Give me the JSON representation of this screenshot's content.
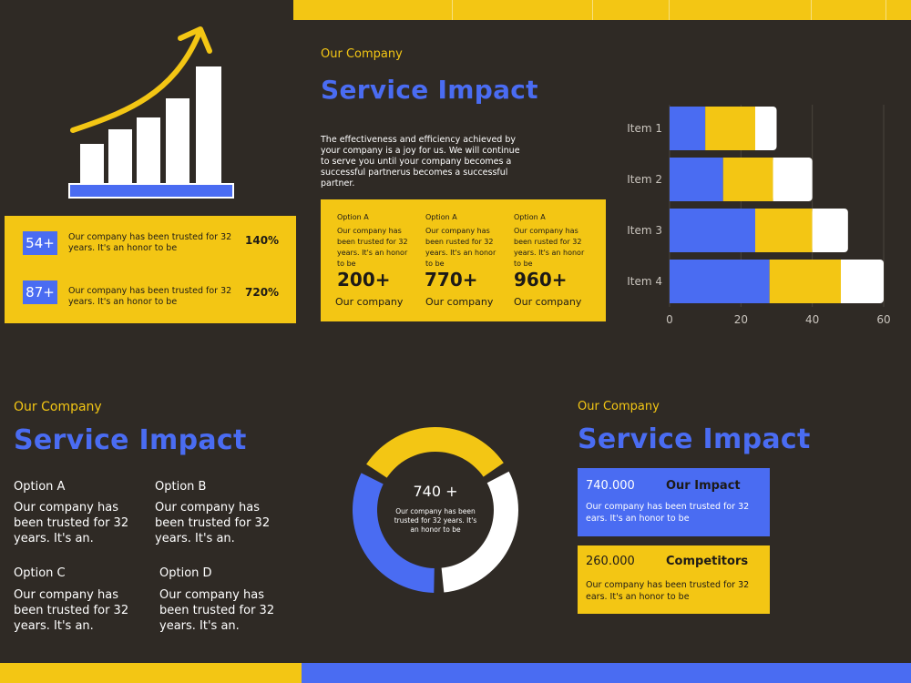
{
  "top_section": {
    "eyebrow": "Our Company",
    "heading": "Service Impact",
    "intro": "The effectiveness and efficiency achieved by your company is a joy for us. We will continue to serve you until your company becomes a successful partnerus becomes a successful partner.",
    "columns": [
      {
        "label": "Option A",
        "text": "Our company has been trusted for 32 years. It's an honor to be",
        "number": "200+",
        "footer": "Our company"
      },
      {
        "label": "Option A",
        "text": "Our company has been rusted for 32 years. It's an honor to be",
        "number": "770+",
        "footer": "Our company"
      },
      {
        "label": "Option A",
        "text": "Our company has been rusted for 32 years. It's an honor to be",
        "number": "960+",
        "footer": "Our company"
      }
    ]
  },
  "stats_box": {
    "rows": [
      {
        "badge": "54+",
        "text": "Our company has been trusted for 32 years. It's an honor to be",
        "percent": "140%"
      },
      {
        "badge": "87+",
        "text": "Our company has been trusted for 32 years. It's an honor to be",
        "percent": "720%"
      }
    ]
  },
  "growth_icon": {
    "name": "growth-chart-icon",
    "bar_color": "#ffffff",
    "arrow_color": "#f3c614",
    "base_color": "#4a6cf2"
  },
  "chart_data": [
    {
      "type": "bar",
      "orientation": "horizontal",
      "stacked": true,
      "categories": [
        "Item 1",
        "Item 2",
        "Item 3",
        "Item 4"
      ],
      "series": [
        {
          "color": "#4a6cf2",
          "values": [
            10,
            15,
            24,
            28
          ]
        },
        {
          "color": "#f3c614",
          "values": [
            14,
            14,
            16,
            20
          ]
        },
        {
          "color": "#ffffff",
          "values": [
            6,
            11,
            10,
            12
          ]
        }
      ],
      "xlim": [
        0,
        60
      ],
      "xticks": [
        0,
        20,
        40,
        60
      ],
      "grid": true
    },
    {
      "type": "pie",
      "donut": true,
      "segments": [
        {
          "color": "#f3c614",
          "value": 33
        },
        {
          "color": "#ffffff",
          "value": 33
        },
        {
          "color": "#4a6cf2",
          "value": 34
        }
      ],
      "center_value": "740 +",
      "center_text": "Our company has been trusted for 32 years. It's an honor to be"
    }
  ],
  "bottom_left": {
    "eyebrow": "Our Company",
    "heading": "Service Impact",
    "options": [
      {
        "title": "Option A",
        "text": "Our company has been trusted for 32 years. It's an."
      },
      {
        "title": "Option B",
        "text": "Our company has been trusted for 32 years. It's an."
      },
      {
        "title": "Option C",
        "text": "Our company has been trusted for 32 years. It's an."
      },
      {
        "title": "Option D",
        "text": "Our company has been trusted for 32 years. It's an."
      }
    ]
  },
  "bottom_right": {
    "eyebrow": "Our Company",
    "heading": "Service Impact",
    "cards": [
      {
        "number": "740.000",
        "title": "Our Impact",
        "text": "Our company has been trusted for 32 ears. It's an honor to be"
      },
      {
        "number": "260.000",
        "title": "Competitors",
        "text": "Our company has been trusted for 32 ears. It's an honor to be"
      }
    ]
  },
  "colors": {
    "background": "#2f2a25",
    "accent_yellow": "#f3c614",
    "accent_blue": "#4a6cf2"
  }
}
